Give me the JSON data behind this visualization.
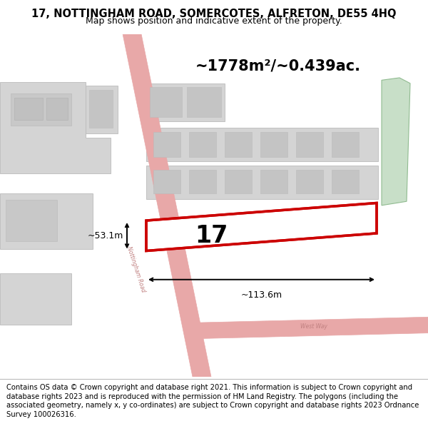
{
  "title_line1": "17, NOTTINGHAM ROAD, SOMERCOTES, ALFRETON, DE55 4HQ",
  "title_line2": "Map shows position and indicative extent of the property.",
  "footer_text": "Contains OS data © Crown copyright and database right 2021. This information is subject to Crown copyright and database rights 2023 and is reproduced with the permission of HM Land Registry. The polygons (including the associated geometry, namely x, y co-ordinates) are subject to Crown copyright and database rights 2023 Ordnance Survey 100026316.",
  "area_label": "~1778m²/~0.439ac.",
  "property_number": "17",
  "dim_width": "~113.6m",
  "dim_height": "~53.1m",
  "map_bg": "#eeeeee",
  "road_color_pink": "#e8a8a8",
  "road_outline": "#d08080",
  "building_fill": "#d4d4d4",
  "building_edge": "#bbbbbb",
  "highlight_fill": "#ffffff",
  "highlight_stroke": "#cc0000",
  "hatch_color": "#e8b0b0",
  "green_fill": "#c8dfc8",
  "green_edge": "#90bb90",
  "title_bg": "#ffffff",
  "footer_bg": "#ffffff",
  "title_fontsize": 10.5,
  "subtitle_fontsize": 9.0,
  "footer_fontsize": 7.2,
  "area_fontsize": 15,
  "prop_num_fontsize": 24,
  "dim_fontsize": 9,
  "road_label_fontsize": 5.5
}
